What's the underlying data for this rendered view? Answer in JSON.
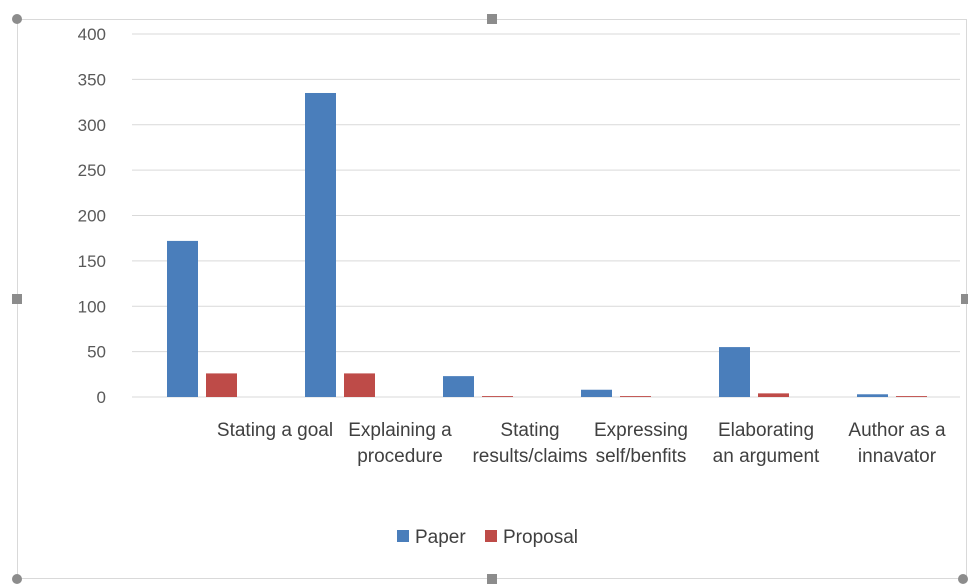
{
  "chart_data": {
    "type": "bar",
    "categories": [
      [
        "Stating a goal",
        ""
      ],
      [
        "Explaining a",
        "procedure"
      ],
      [
        "Stating",
        "results/claims"
      ],
      [
        "Expressing",
        "self/benfits"
      ],
      [
        "Elaborating",
        "an argument"
      ],
      [
        "Author as a",
        "innavator"
      ]
    ],
    "series": [
      {
        "name": "Paper",
        "values": [
          172,
          335,
          23,
          8,
          55,
          3
        ],
        "color": "#4a7ebb"
      },
      {
        "name": "Proposal",
        "values": [
          26,
          26,
          1,
          1,
          4,
          1
        ],
        "color": "#be4b48"
      }
    ],
    "ylim": [
      0,
      400
    ],
    "yticks": [
      0,
      50,
      100,
      150,
      200,
      250,
      300,
      350,
      400
    ],
    "grid": true,
    "legend": "bottom"
  }
}
